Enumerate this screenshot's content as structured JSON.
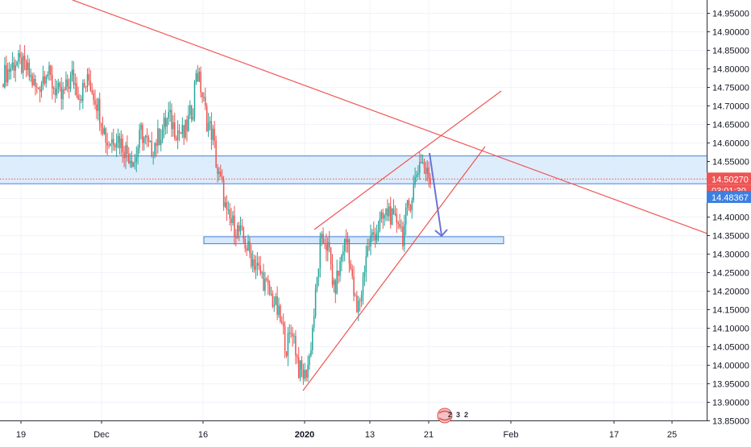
{
  "chart_data": {
    "type": "candlestick",
    "title": "",
    "xlabel": "",
    "ylabel": "",
    "ylim": [
      13.835,
      14.985
    ],
    "y_ticks": [
      "14.95000",
      "14.90000",
      "14.85000",
      "14.80000",
      "14.75000",
      "14.70000",
      "14.65000",
      "14.60000",
      "14.55000",
      "14.50000",
      "14.45000",
      "14.40000",
      "14.35000",
      "14.30000",
      "14.25000",
      "14.20000",
      "14.15000",
      "14.10000",
      "14.05000",
      "14.00000",
      "13.95000",
      "13.90000",
      "13.85000"
    ],
    "x_ticks": [
      "19",
      "Dec",
      "16",
      "2020",
      "13",
      "21",
      "Feb",
      "17",
      "25"
    ],
    "grid": true,
    "candle_colors": {
      "up": "#26a69a",
      "down": "#ef5350"
    },
    "waypoints": [
      [
        0,
        14.78
      ],
      [
        8,
        14.82
      ],
      [
        15,
        14.8
      ],
      [
        22,
        14.74
      ],
      [
        28,
        14.8
      ],
      [
        32,
        14.76
      ],
      [
        38,
        14.72
      ],
      [
        45,
        14.78
      ],
      [
        50,
        14.73
      ],
      [
        56,
        14.77
      ],
      [
        62,
        14.7
      ],
      [
        68,
        14.6
      ],
      [
        74,
        14.62
      ],
      [
        80,
        14.58
      ],
      [
        86,
        14.55
      ],
      [
        90,
        14.63
      ],
      [
        96,
        14.58
      ],
      [
        102,
        14.62
      ],
      [
        108,
        14.67
      ],
      [
        112,
        14.64
      ],
      [
        118,
        14.62
      ],
      [
        124,
        14.7
      ],
      [
        126,
        14.8
      ],
      [
        129,
        14.75
      ],
      [
        133,
        14.66
      ],
      [
        137,
        14.62
      ],
      [
        140,
        14.52
      ],
      [
        143,
        14.48
      ],
      [
        146,
        14.4
      ],
      [
        150,
        14.38
      ],
      [
        154,
        14.36
      ],
      [
        157,
        14.34
      ],
      [
        161,
        14.3
      ],
      [
        165,
        14.27
      ],
      [
        169,
        14.24
      ],
      [
        173,
        14.2
      ],
      [
        177,
        14.17
      ],
      [
        181,
        14.12
      ],
      [
        185,
        14.05
      ],
      [
        189,
        14.1
      ],
      [
        193,
        13.99
      ],
      [
        197,
        13.97
      ],
      [
        200,
        14.02
      ],
      [
        203,
        14.14
      ],
      [
        207,
        14.32
      ],
      [
        210,
        14.34
      ],
      [
        213,
        14.3
      ],
      [
        216,
        14.2
      ],
      [
        219,
        14.25
      ],
      [
        222,
        14.32
      ],
      [
        225,
        14.34
      ],
      [
        228,
        14.22
      ],
      [
        231,
        14.14
      ],
      [
        234,
        14.2
      ],
      [
        237,
        14.3
      ],
      [
        240,
        14.34
      ],
      [
        243,
        14.36
      ],
      [
        246,
        14.38
      ],
      [
        249,
        14.4
      ],
      [
        252,
        14.42
      ],
      [
        255,
        14.38
      ],
      [
        258,
        14.4
      ],
      [
        261,
        14.35
      ],
      [
        264,
        14.42
      ],
      [
        267,
        14.46
      ],
      [
        270,
        14.52
      ],
      [
        273,
        14.56
      ],
      [
        276,
        14.52
      ],
      [
        279,
        14.503
      ]
    ],
    "current_price": "14.50270",
    "countdown": "03:01:30",
    "secondary_price": "14.48367",
    "colors": {
      "trend_line": "#f05454",
      "zone_fill": "#d6e8fb",
      "zone_border": "#4a7fd6",
      "arrow": "#6a74d6",
      "price_label": "#f05454",
      "secondary_label": "#3d7fe0",
      "axis_text": "#131722",
      "grid": "#f0f3fa"
    }
  },
  "watermark": {
    "icons": [
      "2",
      "3",
      "2"
    ]
  }
}
